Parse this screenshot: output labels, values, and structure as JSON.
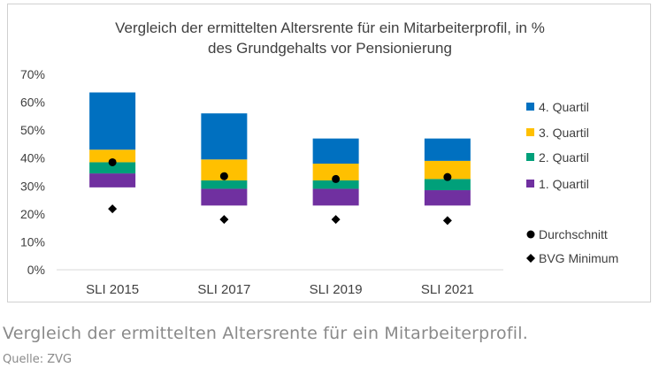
{
  "chart_data": {
    "type": "bar",
    "subtype": "stacked-floating",
    "title_lines": [
      "Vergleich der ermittelten Altersrente für ein Mitarbeiterprofil, in %",
      "des Grundgehalts vor Pensionierung"
    ],
    "categories": [
      "SLI 2015",
      "SLI 2017",
      "SLI 2019",
      "SLI 2021"
    ],
    "ylim": [
      0,
      70
    ],
    "yticks": [
      "0%",
      "10%",
      "20%",
      "30%",
      "40%",
      "50%",
      "60%",
      "70%"
    ],
    "grid": false,
    "legend_position": "right",
    "series": [
      {
        "name": "1. Quartil",
        "color": "#7030a0",
        "ranges": [
          [
            29.5,
            34.5
          ],
          [
            23,
            29
          ],
          [
            23,
            29
          ],
          [
            23,
            28.5
          ]
        ]
      },
      {
        "name": "2. Quartil",
        "color": "#00a07a",
        "ranges": [
          [
            34.5,
            38.5
          ],
          [
            29,
            32
          ],
          [
            29,
            32
          ],
          [
            28.5,
            32.5
          ]
        ]
      },
      {
        "name": "3. Quartil",
        "color": "#ffc000",
        "ranges": [
          [
            38.5,
            43
          ],
          [
            32,
            39.5
          ],
          [
            32,
            38
          ],
          [
            32.5,
            39
          ]
        ]
      },
      {
        "name": "4. Quartil",
        "color": "#0070c0",
        "ranges": [
          [
            43,
            63.5
          ],
          [
            39.5,
            56
          ],
          [
            38,
            47
          ],
          [
            39,
            47
          ]
        ]
      }
    ],
    "markers": [
      {
        "name": "Durchschnitt",
        "shape": "circle",
        "values": [
          38.5,
          33.5,
          32.5,
          33.2
        ]
      },
      {
        "name": "BVG Minimum",
        "shape": "diamond",
        "values": [
          21.8,
          18,
          18,
          17.6
        ]
      }
    ],
    "legend_order": [
      "4. Quartil",
      "3. Quartil",
      "2. Quartil",
      "1. Quartil",
      "Durchschnitt",
      "BVG Minimum"
    ]
  },
  "caption": "Vergleich der ermittelten Altersrente für ein Mitarbeiterprofil.",
  "source": "Quelle: ZVG"
}
